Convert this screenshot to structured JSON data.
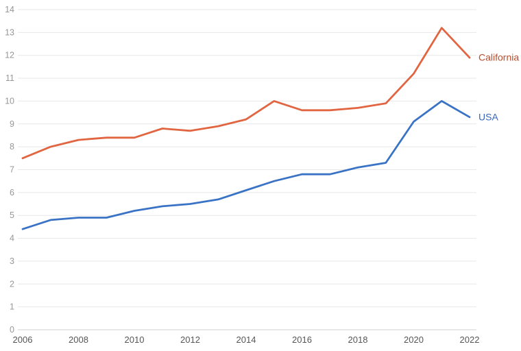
{
  "chart_data": {
    "type": "line",
    "title": "",
    "xlabel": "",
    "ylabel": "",
    "x": [
      2006,
      2007,
      2008,
      2009,
      2010,
      2011,
      2012,
      2013,
      2014,
      2015,
      2016,
      2017,
      2018,
      2019,
      2020,
      2021,
      2022
    ],
    "series": [
      {
        "name": "California",
        "values": [
          7.5,
          8.0,
          8.3,
          8.4,
          8.4,
          8.8,
          8.7,
          8.9,
          9.2,
          10.0,
          9.6,
          9.6,
          9.7,
          9.9,
          11.2,
          13.2,
          11.9
        ],
        "line_color": "#e06540",
        "label_color": "#b94c2b"
      },
      {
        "name": "USA",
        "values": [
          4.4,
          4.8,
          4.9,
          4.9,
          5.2,
          5.4,
          5.5,
          5.7,
          6.1,
          6.5,
          6.8,
          6.8,
          7.1,
          7.3,
          9.1,
          10.0,
          9.3
        ],
        "line_color": "#3a73c5",
        "label_color": "#3566c0"
      }
    ],
    "ylim": [
      0,
      14
    ],
    "xlim": [
      2006,
      2022
    ],
    "yticks": [
      0,
      1,
      2,
      3,
      4,
      5,
      6,
      7,
      8,
      9,
      10,
      11,
      12,
      13,
      14
    ],
    "xticks": [
      2006,
      2008,
      2010,
      2012,
      2014,
      2016,
      2018,
      2020,
      2022
    ],
    "grid": "horizontal-only",
    "legend_position": "line-end-right"
  },
  "style_colors": {
    "gridline": "#e7e7e7",
    "baseline": "#d2d2d2",
    "ytick_label": "#979797",
    "xtick_label": "#555555",
    "background": "#ffffff"
  }
}
